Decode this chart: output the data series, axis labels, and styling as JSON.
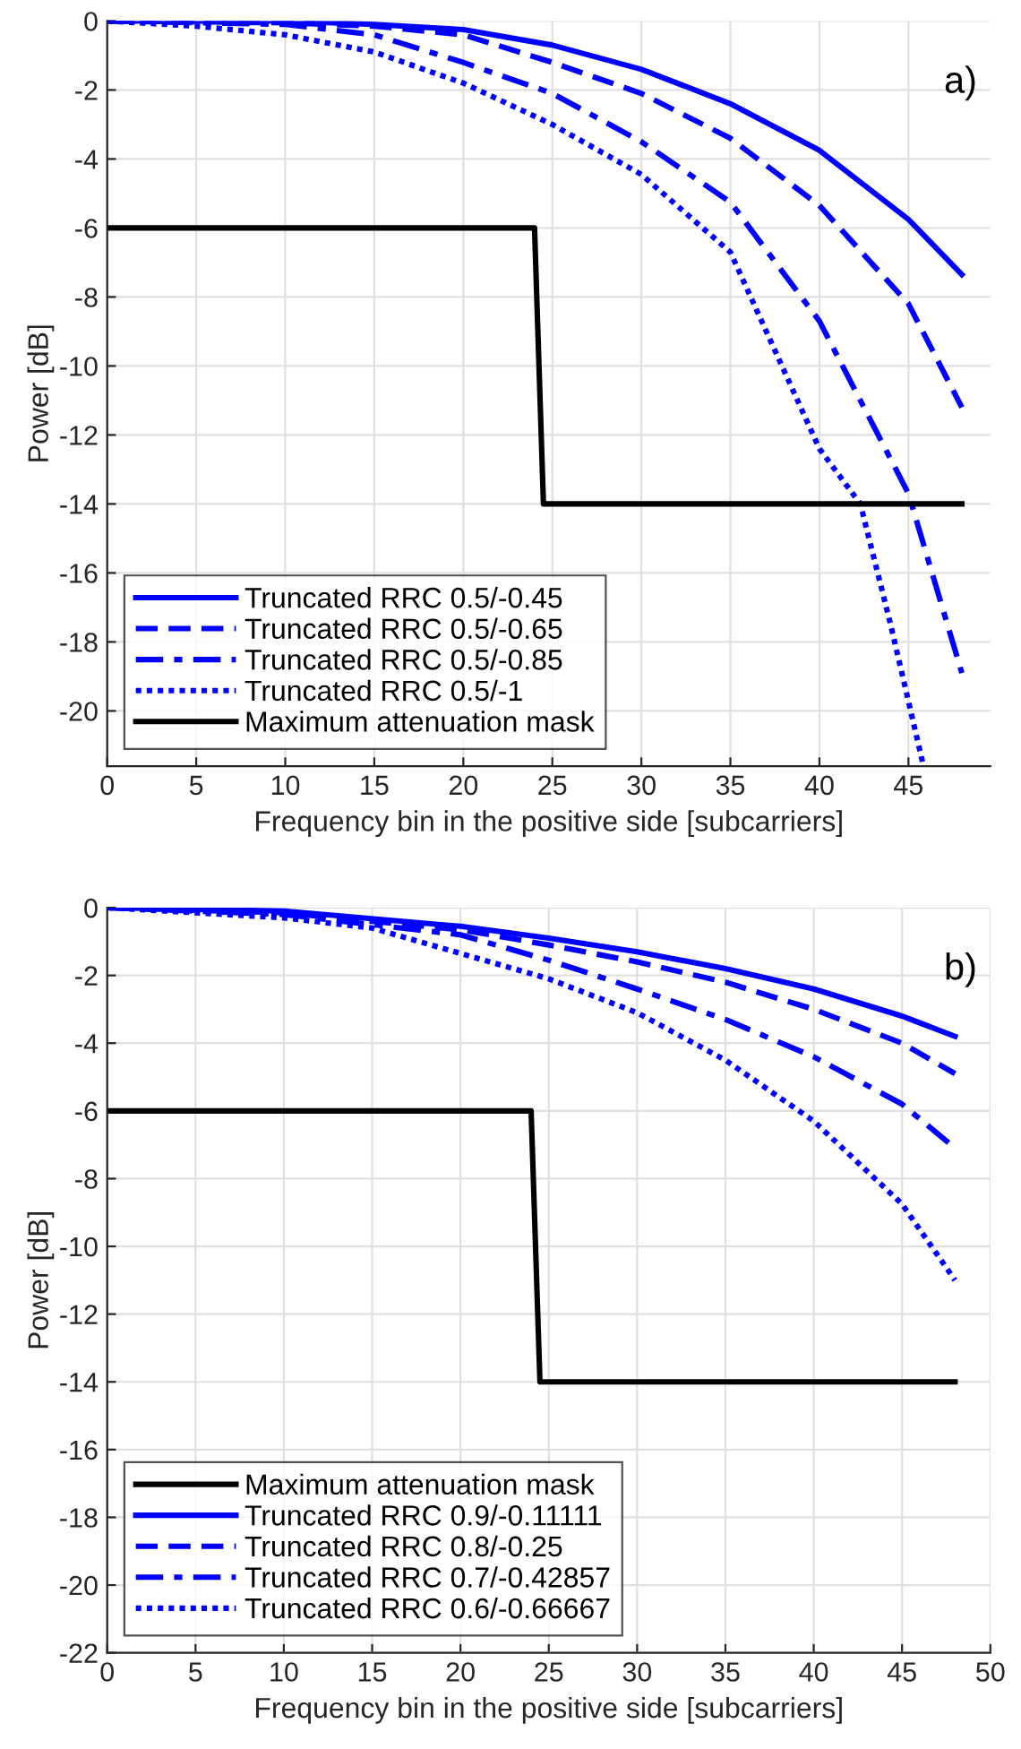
{
  "chart_data": [
    {
      "type": "line",
      "xlabel": "Frequency bin in the positive side [subcarriers]",
      "ylabel": "Power [dB]",
      "annotations": [
        "a)"
      ],
      "xlim": [
        0,
        49.6
      ],
      "ylim": [
        -21.6,
        0
      ],
      "xticks": [
        0,
        5,
        10,
        15,
        20,
        25,
        30,
        35,
        40,
        45
      ],
      "yticks": [
        -20,
        -18,
        -16,
        -14,
        -12,
        -10,
        -8,
        -6,
        -4,
        -2,
        0
      ],
      "grid": true,
      "legend": "bottom left",
      "series": [
        {
          "name": "Truncated RRC 0.5/-0.45",
          "color": "#0000ff",
          "line_style": "solid",
          "x": [
            0,
            10,
            15,
            20,
            25,
            30,
            35,
            40,
            45,
            48
          ],
          "values": [
            0,
            0,
            -0.1,
            -0.25,
            -0.7,
            -1.4,
            -2.4,
            -3.75,
            -5.75,
            -7.35
          ]
        },
        {
          "name": "Truncated RRC 0.5/-0.65",
          "color": "#0000ff",
          "line_style": "dashed",
          "x": [
            0,
            10,
            15,
            20,
            25,
            30,
            35,
            40,
            45,
            48
          ],
          "values": [
            0,
            -0.05,
            -0.15,
            -0.4,
            -1.2,
            -2.1,
            -3.4,
            -5.35,
            -8.2,
            -11.2
          ]
        },
        {
          "name": "Truncated RRC 0.5/-0.85",
          "color": "#0000ff",
          "line_style": "dashdot",
          "x": [
            0,
            5,
            10,
            15,
            20,
            25,
            30,
            35,
            40,
            45,
            48
          ],
          "values": [
            0,
            -0.05,
            -0.1,
            -0.4,
            -1.2,
            -2.1,
            -3.5,
            -5.25,
            -8.7,
            -13.7,
            -18.9
          ]
        },
        {
          "name": "Truncated RRC 0.5/-1",
          "color": "#0000ff",
          "line_style": "dotted",
          "x": [
            0,
            5,
            10,
            15,
            20,
            25,
            30,
            35,
            40,
            42.3,
            44,
            45.8
          ],
          "values": [
            0,
            -0.15,
            -0.4,
            -0.9,
            -1.8,
            -3.0,
            -4.45,
            -6.7,
            -12.4,
            -14,
            -17.5,
            -21.5
          ]
        },
        {
          "name": "Maximum attenuation mask",
          "color": "#000000",
          "line_style": "solid",
          "x": [
            0,
            24,
            24.5,
            48
          ],
          "values": [
            -6,
            -6,
            -14,
            -14
          ]
        }
      ]
    },
    {
      "type": "line",
      "xlabel": "Frequency bin in the positive side [subcarriers]",
      "ylabel": "Power [dB]",
      "annotations": [
        "b)"
      ],
      "xlim": [
        0,
        50
      ],
      "ylim": [
        -22,
        0
      ],
      "xticks": [
        0,
        5,
        10,
        15,
        20,
        25,
        30,
        35,
        40,
        45,
        50
      ],
      "yticks": [
        -22,
        -20,
        -18,
        -16,
        -14,
        -12,
        -10,
        -8,
        -6,
        -4,
        -2,
        0
      ],
      "grid": true,
      "legend": "bottom left",
      "series": [
        {
          "name": "Maximum attenuation mask",
          "color": "#000000",
          "line_style": "solid",
          "x": [
            0,
            24,
            24.5,
            48
          ],
          "values": [
            -6,
            -6,
            -14,
            -14
          ]
        },
        {
          "name": "Truncated RRC 0.9/-0.11111",
          "color": "#0000ff",
          "line_style": "solid",
          "x": [
            0,
            10,
            20,
            25,
            30,
            35,
            40,
            45,
            48
          ],
          "values": [
            0,
            -0.1,
            -0.55,
            -0.9,
            -1.3,
            -1.8,
            -2.4,
            -3.2,
            -3.8
          ]
        },
        {
          "name": "Truncated RRC 0.8/-0.25",
          "color": "#0000ff",
          "line_style": "dashed",
          "x": [
            0,
            10,
            20,
            25,
            30,
            35,
            40,
            45,
            48
          ],
          "values": [
            0,
            -0.15,
            -0.65,
            -1.1,
            -1.6,
            -2.2,
            -3.0,
            -4.0,
            -4.9
          ]
        },
        {
          "name": "Truncated RRC 0.7/-0.42857",
          "color": "#0000ff",
          "line_style": "dashdot",
          "x": [
            0,
            10,
            20,
            25,
            30,
            35,
            40,
            45,
            48
          ],
          "values": [
            0,
            -0.2,
            -0.8,
            -1.55,
            -2.4,
            -3.3,
            -4.4,
            -5.8,
            -7.1
          ]
        },
        {
          "name": "Truncated RRC 0.6/-0.66667",
          "color": "#0000ff",
          "line_style": "dotted",
          "x": [
            0,
            10,
            15,
            20,
            25,
            30,
            35,
            40,
            45,
            48
          ],
          "values": [
            0,
            -0.3,
            -0.6,
            -1.35,
            -2.1,
            -3.1,
            -4.5,
            -6.3,
            -8.75,
            -11.0
          ]
        }
      ]
    }
  ]
}
